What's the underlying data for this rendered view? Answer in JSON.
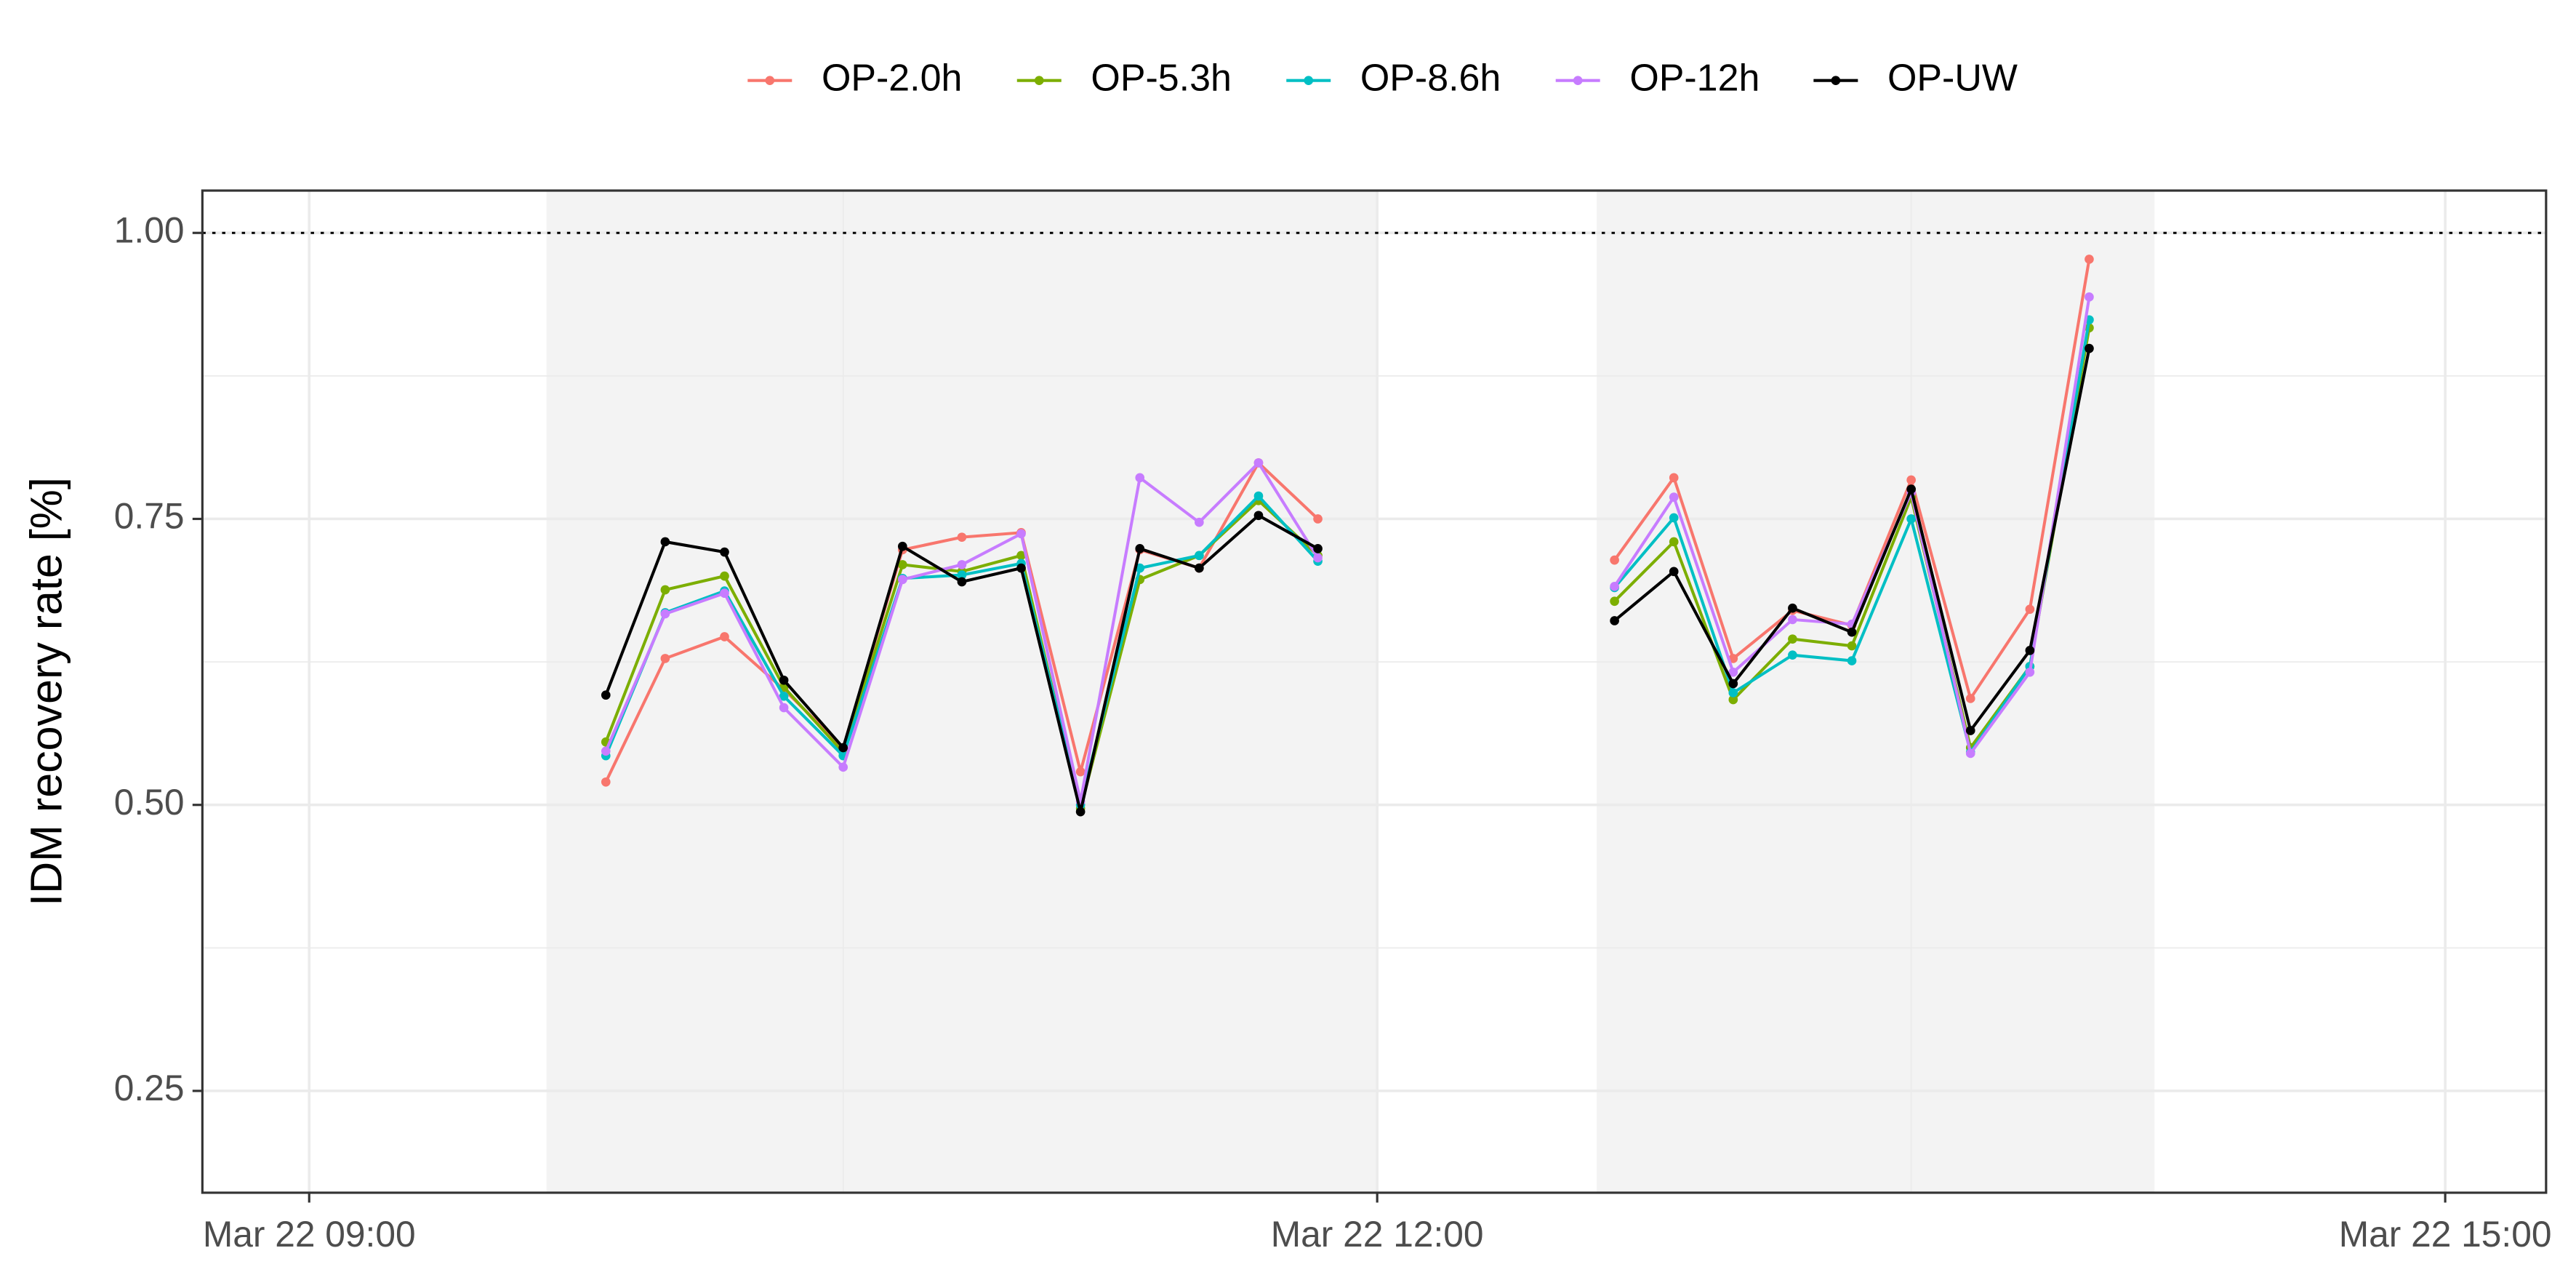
{
  "chart_data": {
    "type": "line",
    "ylabel": "IDM recovery rate [%]",
    "x": [
      "Mar 22 09:50",
      "Mar 22 10:00",
      "Mar 22 10:10",
      "Mar 22 10:20",
      "Mar 22 10:30",
      "Mar 22 10:40",
      "Mar 22 10:50",
      "Mar 22 11:00",
      "Mar 22 11:10",
      "Mar 22 11:20",
      "Mar 22 11:30",
      "Mar 22 11:40",
      "Mar 22 11:50",
      "Mar 22 12:00",
      "Mar 22 12:10",
      "Mar 22 12:20",
      "Mar 22 12:30",
      "Mar 22 12:40",
      "Mar 22 12:50",
      "Mar 22 13:00",
      "Mar 22 13:10",
      "Mar 22 13:20",
      "Mar 22 13:30",
      "Mar 22 13:40",
      "Mar 22 13:50",
      "Mar 22 14:00"
    ],
    "series": [
      {
        "name": "OP-2.0h",
        "color": "#F8766D",
        "values": [
          0.52,
          0.628,
          0.647,
          0.601,
          0.55,
          0.723,
          0.734,
          0.738,
          0.529,
          0.723,
          0.707,
          0.799,
          0.75,
          null,
          null,
          null,
          null,
          0.714,
          0.786,
          0.628,
          0.67,
          0.657,
          0.784,
          0.593,
          0.671,
          0.977
        ]
      },
      {
        "name": "OP-5.3h",
        "color": "#7CAE00",
        "values": [
          0.555,
          0.688,
          0.7,
          0.603,
          0.546,
          0.71,
          0.704,
          0.718,
          0.497,
          0.697,
          0.718,
          0.766,
          0.718,
          null,
          null,
          null,
          null,
          0.678,
          0.73,
          0.592,
          0.645,
          0.639,
          0.769,
          0.55,
          0.621,
          0.917
        ]
      },
      {
        "name": "OP-8.6h",
        "color": "#00BFC4",
        "values": [
          0.543,
          0.668,
          0.687,
          0.595,
          0.543,
          0.698,
          0.701,
          0.711,
          0.5,
          0.707,
          0.718,
          0.77,
          0.713,
          null,
          null,
          null,
          null,
          0.69,
          0.751,
          0.598,
          0.631,
          0.626,
          0.75,
          0.546,
          0.621,
          0.924
        ]
      },
      {
        "name": "OP-12h",
        "color": "#C77CFF",
        "values": [
          0.547,
          0.667,
          0.685,
          0.585,
          0.533,
          0.697,
          0.71,
          0.737,
          0.503,
          0.786,
          0.747,
          0.799,
          0.716,
          null,
          null,
          null,
          null,
          0.691,
          0.769,
          0.616,
          0.662,
          0.658,
          0.773,
          0.545,
          0.616,
          0.944
        ]
      },
      {
        "name": "OP-UW",
        "color": "#000000",
        "values": [
          0.596,
          0.73,
          0.721,
          0.609,
          0.55,
          0.726,
          0.695,
          0.707,
          0.494,
          0.724,
          0.707,
          0.753,
          0.724,
          null,
          null,
          null,
          null,
          0.661,
          0.704,
          0.606,
          0.672,
          0.651,
          0.776,
          0.565,
          0.635,
          0.899
        ]
      }
    ],
    "shaded": [
      [
        "Mar 22 09:40",
        "Mar 22 12:00"
      ],
      [
        "Mar 22 12:37",
        "Mar 22 14:11"
      ]
    ],
    "xlim": [
      "Mar 22 08:42",
      "Mar 22 15:17"
    ],
    "xticks": [
      "Mar 22 09:00",
      "Mar 22 12:00",
      "Mar 22 15:00"
    ],
    "minor_xticks": [
      "Mar 22 10:30",
      "Mar 22 13:30"
    ],
    "ylim": [
      0.161,
      1.037
    ],
    "yticks": [
      {
        "value": 0.25,
        "label": "0.25"
      },
      {
        "value": 0.5,
        "label": "0.50"
      },
      {
        "value": 0.75,
        "label": "0.75"
      },
      {
        "value": 1,
        "label": "1.00"
      }
    ],
    "minor_yticks": [
      0.375,
      0.625,
      0.875
    ],
    "hline": 1,
    "grid": true,
    "legend": "top"
  }
}
